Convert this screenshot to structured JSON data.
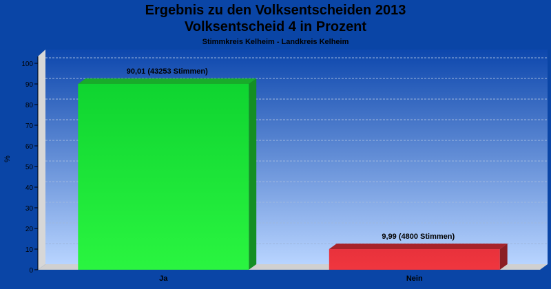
{
  "header": {
    "title": "Ergebnis zu den Volksentscheiden 2013",
    "title2": "Volksentscheid 4 in Prozent",
    "subtitle": "Stimmkreis Kelheim - Landkreis Kelheim"
  },
  "chart_data": {
    "type": "bar",
    "title": "Ergebnis zu den Volksentscheiden 2013 Volksentscheid 4 in Prozent",
    "subtitle": "Stimmkreis Kelheim - Landkreis Kelheim",
    "ylabel": "%",
    "xlabel": "",
    "ylim": [
      0,
      100
    ],
    "yticks": [
      0,
      10,
      20,
      30,
      40,
      50,
      60,
      70,
      80,
      90,
      100
    ],
    "categories": [
      "Ja",
      "Nein"
    ],
    "values": [
      90.01,
      9.99
    ],
    "data_labels": [
      "90,01 (43253 Stimmen)",
      "9,99 (4800 Stimmen)"
    ],
    "colors": [
      "#22ee3a",
      "#e8323c"
    ],
    "grid": true,
    "legend": "none"
  }
}
